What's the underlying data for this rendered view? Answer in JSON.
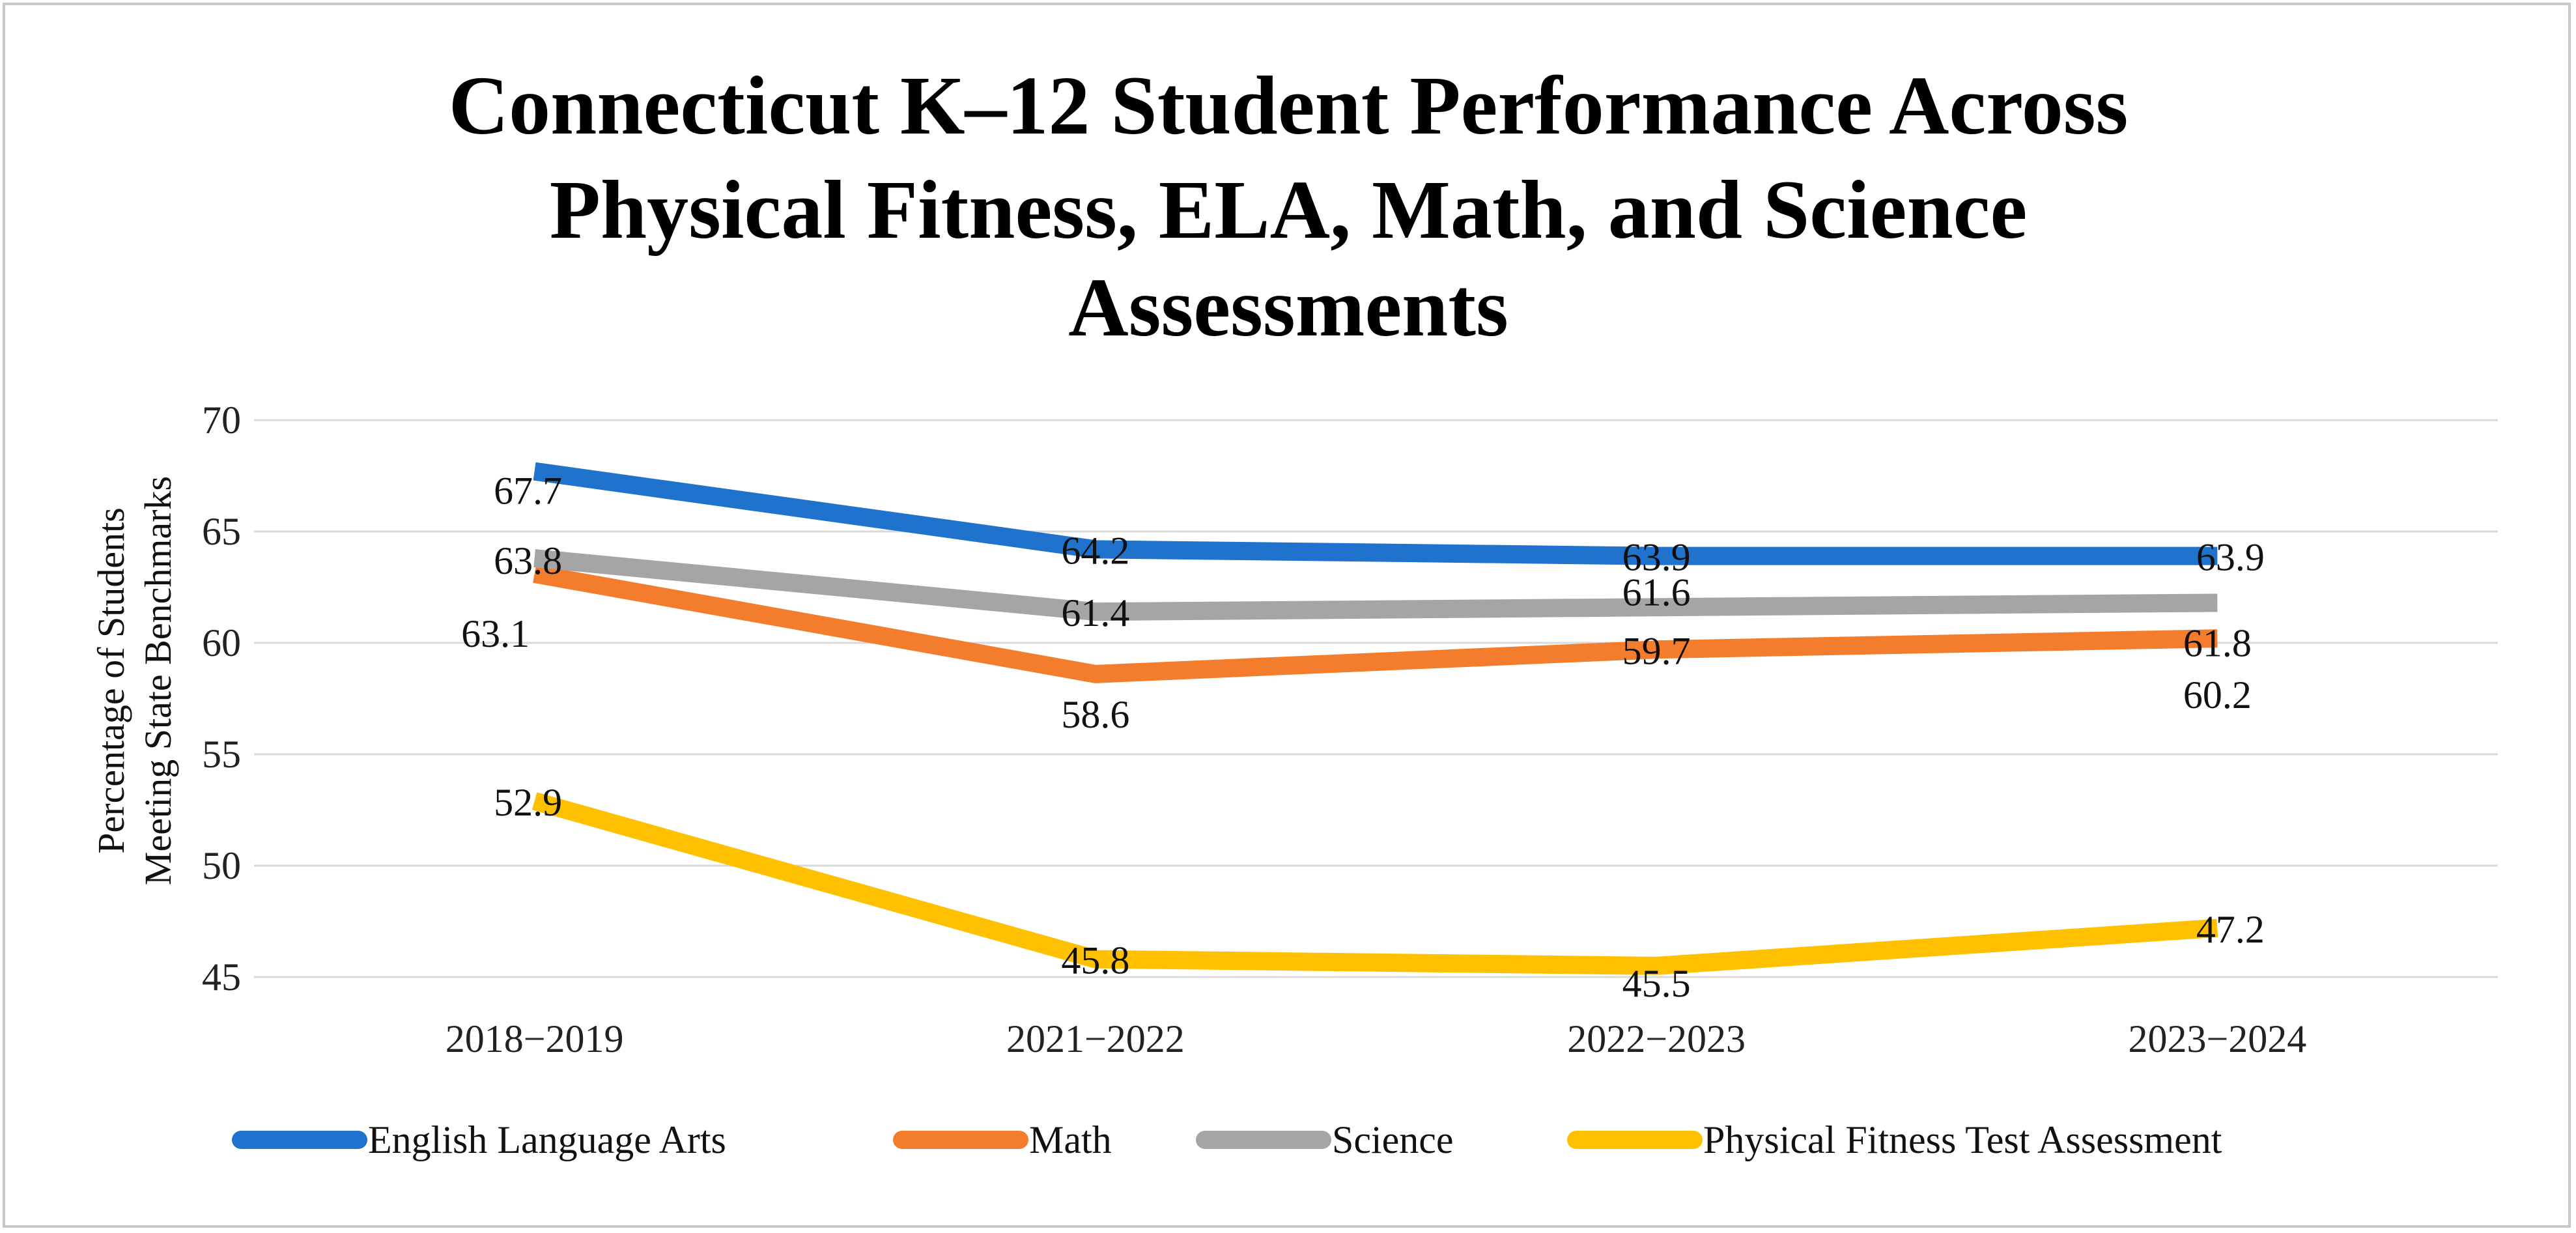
{
  "chart_data": {
    "type": "line",
    "title": [
      "Connecticut K–12 Student Performance Across",
      "Physical Fitness, ELA, Math, and Science",
      "Assessments"
    ],
    "xlabel": "",
    "ylabel": [
      "Percentage of Students",
      "Meeting State Benchmarks"
    ],
    "categories": [
      "2018−2019",
      "2021−2022",
      "2022−2023",
      "2023−2024"
    ],
    "ylim": [
      45,
      70
    ],
    "yticks": [
      "45",
      "50",
      "55",
      "60",
      "65",
      "70"
    ],
    "grid": true,
    "legend_position": "bottom",
    "series": [
      {
        "name": "English Language Arts",
        "color": "#1f73cc",
        "values": [
          67.7,
          64.2,
          63.9,
          63.9
        ],
        "labels": [
          "67.7",
          "64.2",
          "63.9",
          "63.9"
        ]
      },
      {
        "name": "Math",
        "color": "#f47d2d",
        "values": [
          63.1,
          58.6,
          59.7,
          60.2
        ],
        "labels": [
          "63.1",
          "58.6",
          "59.7",
          "60.2"
        ]
      },
      {
        "name": "Science",
        "color": "#a5a5a5",
        "values": [
          63.8,
          61.4,
          61.6,
          61.8
        ],
        "labels": [
          "63.8",
          "61.4",
          "61.6",
          "61.8"
        ]
      },
      {
        "name": "Physical Fitness Test Assessment",
        "color": "#ffc000",
        "values": [
          52.9,
          45.8,
          45.5,
          47.2
        ],
        "labels": [
          "52.9",
          "45.8",
          "45.5",
          "47.2"
        ]
      }
    ]
  }
}
